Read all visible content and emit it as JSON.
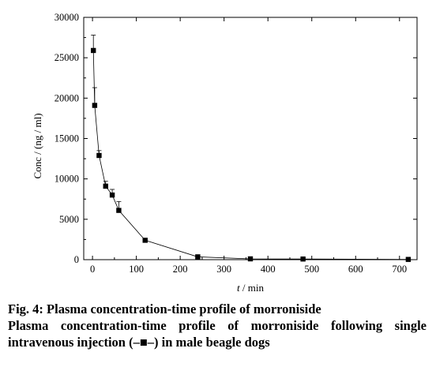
{
  "chart_data": {
    "type": "line",
    "xlabel_italic": "t",
    "xlabel_rest": " / min",
    "ylabel": "Conc / (ng / ml)",
    "xlim": [
      -20,
      740
    ],
    "ylim": [
      0,
      30000
    ],
    "x_ticks": [
      "0",
      "100",
      "200",
      "300",
      "400",
      "500",
      "600",
      "700"
    ],
    "y_ticks": [
      "0",
      "5000",
      "10000",
      "15000",
      "20000",
      "25000",
      "30000"
    ],
    "grid": false,
    "marker": "square",
    "line_color": "#000000",
    "series": [
      {
        "x": [
          2,
          5,
          15,
          30,
          45,
          60,
          120,
          240,
          360,
          480,
          720
        ],
        "values": [
          25900,
          19100,
          12900,
          9100,
          8000,
          6100,
          2400,
          350,
          100,
          80,
          30
        ],
        "error_upper": [
          27800,
          21300,
          13500,
          9700,
          8700,
          7200,
          2600,
          450,
          150,
          120,
          60
        ]
      }
    ]
  },
  "caption": {
    "title": "Fig. 4: Plasma concentration-time profile of morroniside",
    "body": "Plasma concentration-time profile of morroniside following single intravenous injection (–■–) in male beagle dogs"
  }
}
